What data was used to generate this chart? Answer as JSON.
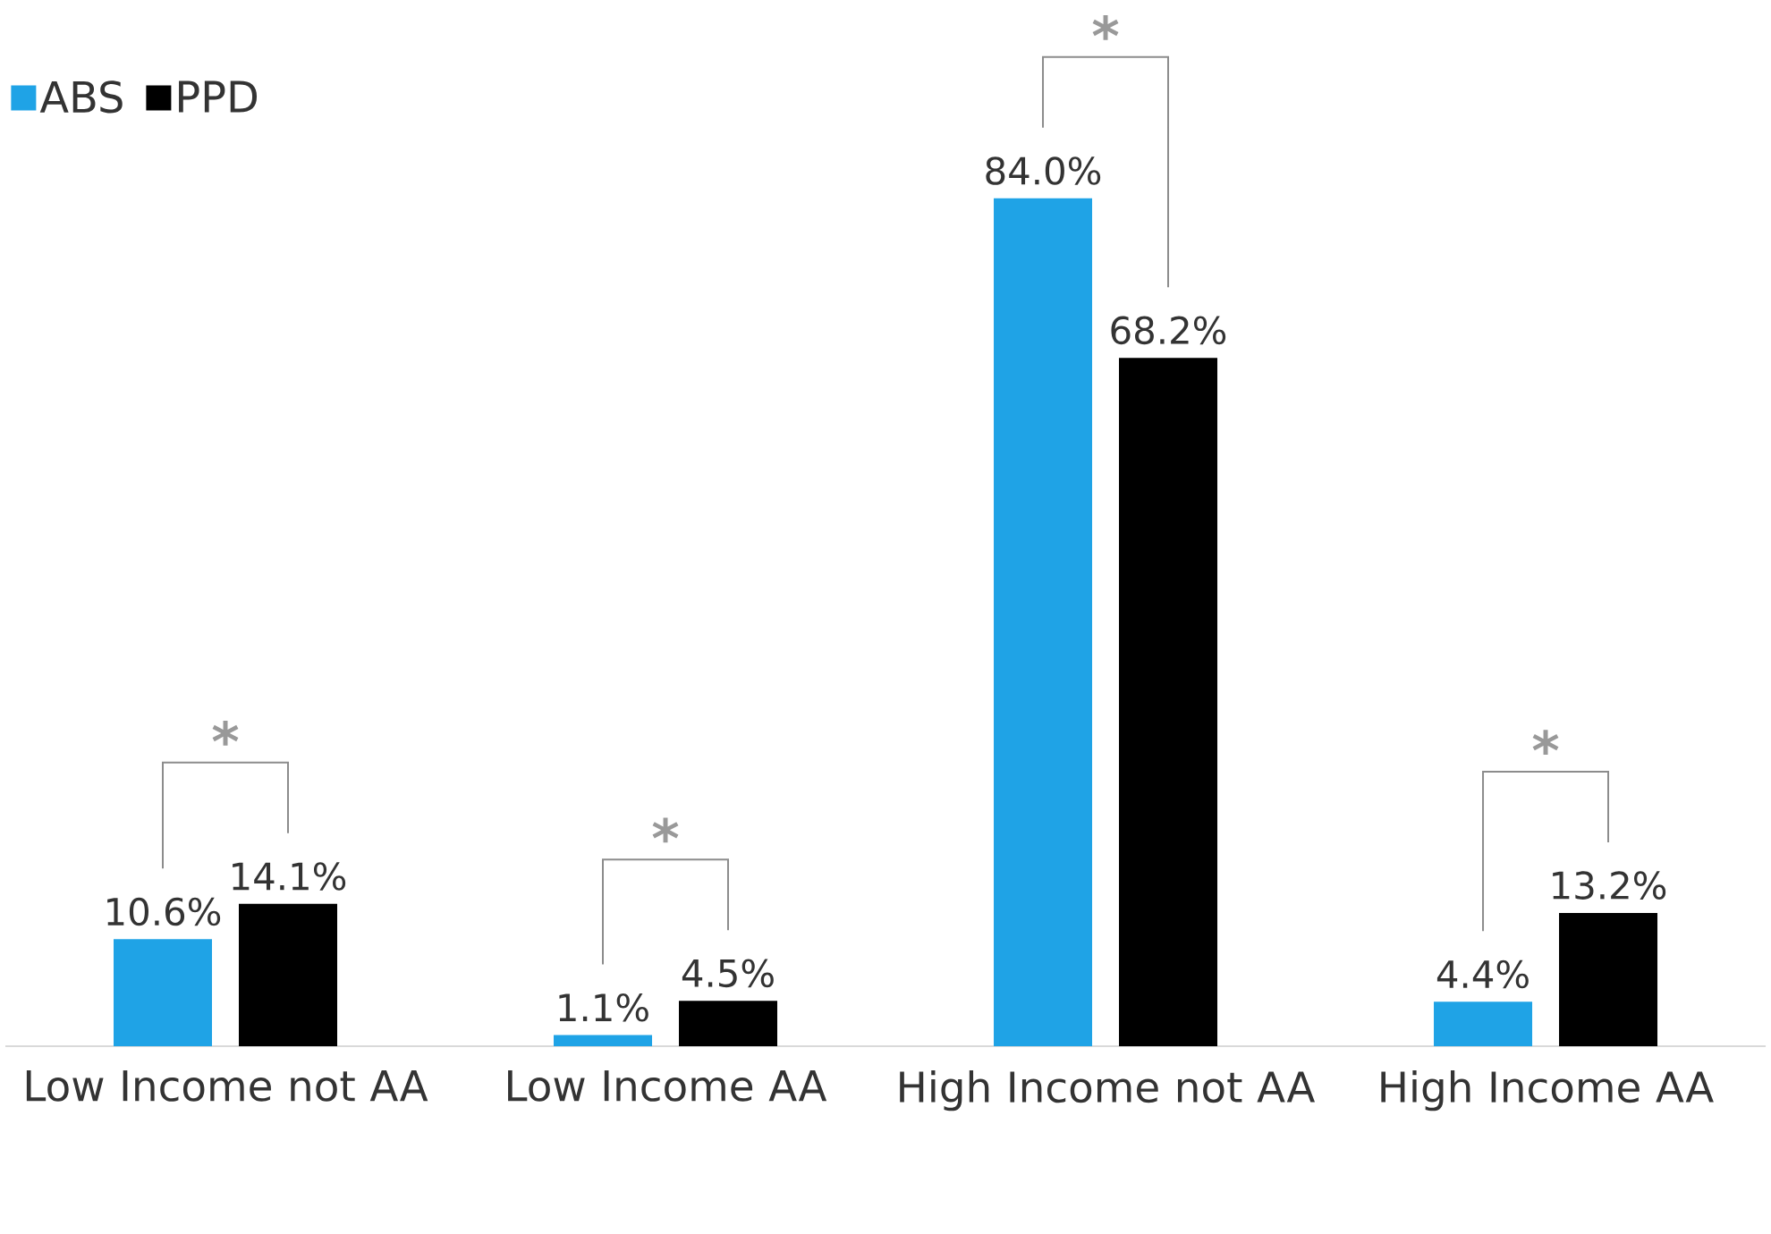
{
  "chart_data": {
    "type": "bar",
    "categories": [
      "Low Income not AA",
      "Low Income AA",
      "High Income not AA",
      "High Income AA"
    ],
    "series": [
      {
        "name": "ABS",
        "color": "#1fa3e6",
        "values": [
          10.6,
          1.1,
          84.0,
          4.4
        ],
        "value_labels": [
          "10.6%",
          "1.1%",
          "84.0%",
          "4.4%"
        ]
      },
      {
        "name": "PPD",
        "color": "#000000",
        "values": [
          14.1,
          4.5,
          68.2,
          13.2
        ],
        "value_labels": [
          "14.1%",
          "4.5%",
          "68.2%",
          "13.2%"
        ]
      }
    ],
    "annotations": [
      "*",
      "*",
      "*",
      "*"
    ],
    "legend": "top left"
  }
}
